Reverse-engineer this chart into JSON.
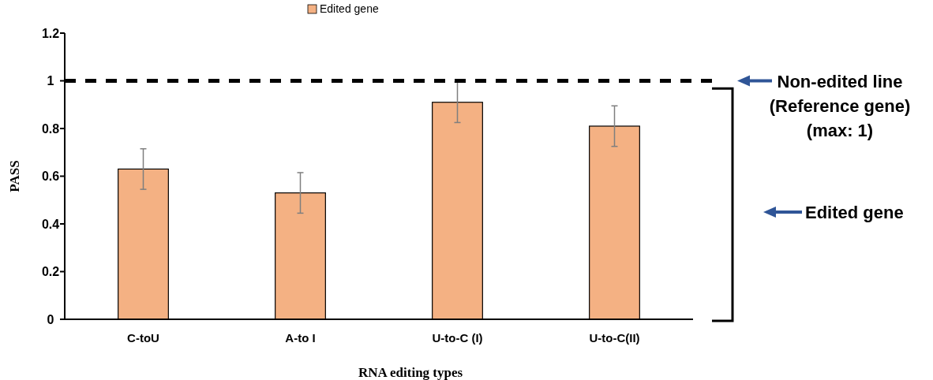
{
  "chart_data": {
    "type": "bar",
    "xlabel": "RNA editing types",
    "ylabel": "PASS",
    "categories": [
      "C-toU",
      "A-to I",
      "U-to-C (I)",
      "U-to-C(II)"
    ],
    "series": [
      {
        "name": "Edited gene",
        "color": "#f4b183",
        "values": [
          0.63,
          0.53,
          0.91,
          0.81
        ],
        "errors": [
          [
            0.545,
            0.715
          ],
          [
            0.445,
            0.615
          ],
          [
            0.825,
            0.995
          ],
          [
            0.725,
            0.895
          ]
        ]
      }
    ],
    "ylim": [
      0,
      1.2
    ],
    "yticks": [
      0,
      0.2,
      0.4,
      0.6,
      0.8,
      1,
      1.2
    ],
    "ref_lines": [
      {
        "axis": "y",
        "value": 1,
        "label": "Non-edited line\n(Reference gene)\n(max: 1)",
        "color": "#000000",
        "line_style": "dashed"
      }
    ],
    "annotations": [
      "Edited gene"
    ],
    "legend": "top",
    "grid": false
  }
}
